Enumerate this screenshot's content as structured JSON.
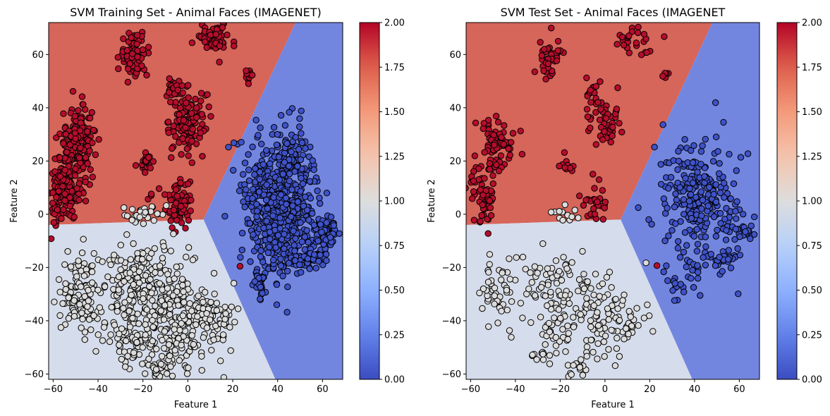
{
  "chart_data": [
    {
      "type": "scatter",
      "title": "SVM Training Set - Animal Faces (IMAGENET)",
      "xlabel": "Feature 1",
      "ylabel": "Feature 2",
      "xlim": [
        -62,
        69
      ],
      "ylim": [
        -62,
        72
      ],
      "xticks": [
        "−60",
        "−40",
        "−20",
        "0",
        "20",
        "40",
        "60"
      ],
      "yticks": [
        "−60",
        "−40",
        "−20",
        "0",
        "20",
        "40",
        "60"
      ],
      "grid": false,
      "decision_regions": {
        "class_0_color": "#7386df",
        "class_1_color": "#d5dceb",
        "class_2_color": "#d6655a",
        "triple_point": [
          7,
          -2
        ],
        "boundary_0_2_end": [
          48,
          72
        ],
        "boundary_1_2_end": [
          -62,
          -4
        ],
        "boundary_0_1_end": [
          39,
          -62
        ]
      },
      "clusters": [
        {
          "class": 2,
          "cx": -49,
          "cy": 27,
          "sx": 4,
          "sy": 7,
          "n": 170
        },
        {
          "class": 2,
          "cx": -55,
          "cy": 8,
          "sx": 3,
          "sy": 6,
          "n": 130
        },
        {
          "class": 2,
          "cx": -24,
          "cy": 60,
          "sx": 3,
          "sy": 4,
          "n": 90
        },
        {
          "class": 2,
          "cx": 0,
          "cy": 35,
          "sx": 4,
          "sy": 6,
          "n": 120
        },
        {
          "class": 2,
          "cx": -6,
          "cy": 47,
          "sx": 2,
          "sy": 2,
          "n": 30
        },
        {
          "class": 2,
          "cx": 12,
          "cy": 66,
          "sx": 4,
          "sy": 3,
          "n": 60
        },
        {
          "class": 2,
          "cx": 27,
          "cy": 52,
          "sx": 1,
          "sy": 1,
          "n": 12
        },
        {
          "class": 2,
          "cx": -18,
          "cy": 19,
          "sx": 2,
          "sy": 2,
          "n": 20
        },
        {
          "class": 2,
          "cx": -4,
          "cy": 5,
          "sx": 3,
          "sy": 5,
          "n": 70
        },
        {
          "class": 2,
          "cx": -16,
          "cy": 6,
          "sx": 1,
          "sy": 1,
          "n": 4
        },
        {
          "class": 2,
          "cx": 23,
          "cy": -19,
          "sx": 0.3,
          "sy": 0.3,
          "n": 1
        },
        {
          "class": 0,
          "cx": 42,
          "cy": 5,
          "sx": 8,
          "sy": 13,
          "n": 650
        },
        {
          "class": 0,
          "cx": 62,
          "cy": -7,
          "sx": 3,
          "sy": 3,
          "n": 60
        },
        {
          "class": 0,
          "cx": 54,
          "cy": -17,
          "sx": 4,
          "sy": 2,
          "n": 60
        },
        {
          "class": 0,
          "cx": 32,
          "cy": -26,
          "sx": 2,
          "sy": 3,
          "n": 30
        },
        {
          "class": 1,
          "cx": -22,
          "cy": -25,
          "sx": 8,
          "sy": 6,
          "n": 160
        },
        {
          "class": 1,
          "cx": -48,
          "cy": -30,
          "sx": 5,
          "sy": 8,
          "n": 120
        },
        {
          "class": 1,
          "cx": -4,
          "cy": -40,
          "sx": 8,
          "sy": 10,
          "n": 220
        },
        {
          "class": 1,
          "cx": -25,
          "cy": -45,
          "sx": 6,
          "sy": 5,
          "n": 90
        },
        {
          "class": 1,
          "cx": 12,
          "cy": -40,
          "sx": 4,
          "sy": 4,
          "n": 50
        },
        {
          "class": 1,
          "cx": -19,
          "cy": 0,
          "sx": 4,
          "sy": 2,
          "n": 30
        },
        {
          "class": 1,
          "cx": -12,
          "cy": -58,
          "sx": 3,
          "sy": 2,
          "n": 30
        }
      ],
      "colorbar": {
        "min": 0,
        "max": 2,
        "ticks": [
          "0.00",
          "0.25",
          "0.50",
          "0.75",
          "1.00",
          "1.25",
          "1.50",
          "1.75",
          "2.00"
        ],
        "colormap": "coolwarm"
      }
    },
    {
      "type": "scatter",
      "title": "SVM Test Set - Animal Faces (IMAGENET",
      "xlabel": "Feature 1",
      "ylabel": "Feature 2",
      "xlim": [
        -62,
        69
      ],
      "ylim": [
        -62,
        72
      ],
      "xticks": [
        "−60",
        "−40",
        "−20",
        "0",
        "20",
        "40",
        "60"
      ],
      "yticks": [
        "−60",
        "−40",
        "−20",
        "0",
        "20",
        "40",
        "60"
      ],
      "grid": false,
      "decision_regions": {
        "class_0_color": "#7386df",
        "class_1_color": "#d5dceb",
        "class_2_color": "#d6655a",
        "triple_point": [
          7,
          -2
        ],
        "boundary_0_2_end": [
          48,
          72
        ],
        "boundary_1_2_end": [
          -62,
          -4
        ],
        "boundary_0_1_end": [
          39,
          -62
        ]
      },
      "clusters": [
        {
          "class": 2,
          "cx": -48,
          "cy": 27,
          "sx": 4,
          "sy": 6,
          "n": 70
        },
        {
          "class": 2,
          "cx": -55,
          "cy": 8,
          "sx": 3,
          "sy": 6,
          "n": 60
        },
        {
          "class": 2,
          "cx": -25,
          "cy": 60,
          "sx": 3,
          "sy": 4,
          "n": 40
        },
        {
          "class": 2,
          "cx": 0,
          "cy": 35,
          "sx": 4,
          "sy": 5,
          "n": 50
        },
        {
          "class": 2,
          "cx": -6,
          "cy": 47,
          "sx": 2,
          "sy": 2,
          "n": 14
        },
        {
          "class": 2,
          "cx": 13,
          "cy": 65,
          "sx": 4,
          "sy": 3,
          "n": 25
        },
        {
          "class": 2,
          "cx": 27,
          "cy": 52,
          "sx": 1,
          "sy": 1,
          "n": 6
        },
        {
          "class": 2,
          "cx": -17,
          "cy": 19,
          "sx": 2,
          "sy": 2,
          "n": 10
        },
        {
          "class": 2,
          "cx": -4,
          "cy": 4,
          "sx": 3,
          "sy": 4,
          "n": 30
        },
        {
          "class": 2,
          "cx": 23,
          "cy": -19,
          "sx": 0.3,
          "sy": 0.3,
          "n": 1
        },
        {
          "class": 0,
          "cx": 42,
          "cy": 4,
          "sx": 8,
          "sy": 12,
          "n": 260
        },
        {
          "class": 0,
          "cx": 62,
          "cy": -7,
          "sx": 3,
          "sy": 3,
          "n": 25
        },
        {
          "class": 0,
          "cx": 54,
          "cy": -17,
          "sx": 4,
          "sy": 2,
          "n": 25
        },
        {
          "class": 0,
          "cx": 32,
          "cy": -28,
          "sx": 2,
          "sy": 3,
          "n": 12
        },
        {
          "class": 1,
          "cx": -22,
          "cy": -25,
          "sx": 8,
          "sy": 6,
          "n": 70
        },
        {
          "class": 1,
          "cx": -48,
          "cy": -30,
          "sx": 5,
          "sy": 7,
          "n": 50
        },
        {
          "class": 1,
          "cx": -4,
          "cy": -40,
          "sx": 8,
          "sy": 10,
          "n": 90
        },
        {
          "class": 1,
          "cx": -25,
          "cy": -45,
          "sx": 6,
          "sy": 5,
          "n": 40
        },
        {
          "class": 1,
          "cx": 12,
          "cy": -40,
          "sx": 4,
          "sy": 4,
          "n": 20
        },
        {
          "class": 1,
          "cx": -19,
          "cy": 0,
          "sx": 4,
          "sy": 2,
          "n": 12
        },
        {
          "class": 1,
          "cx": -12,
          "cy": -58,
          "sx": 3,
          "sy": 2,
          "n": 14
        }
      ],
      "colorbar": {
        "min": 0,
        "max": 2,
        "ticks": [
          "0.00",
          "0.25",
          "0.50",
          "0.75",
          "1.00",
          "1.25",
          "1.50",
          "1.75",
          "2.00"
        ],
        "colormap": "coolwarm"
      }
    }
  ]
}
